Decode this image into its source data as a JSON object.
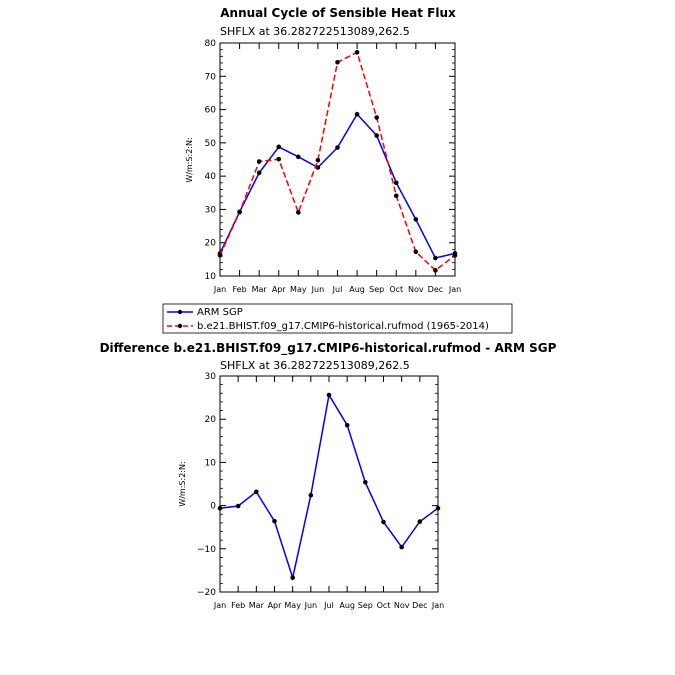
{
  "chart_data": [
    {
      "type": "line",
      "title": "Annual Cycle of Sensible Heat Flux",
      "subtitle": "SHFLX  at  36.282722513089,262.5",
      "ylabel": "W/m:S:2:N:",
      "xlabel": "",
      "categories": [
        "Jan",
        "Feb",
        "Mar",
        "Apr",
        "May",
        "Jun",
        "Jul",
        "Aug",
        "Sep",
        "Oct",
        "Nov",
        "Dec",
        "Jan"
      ],
      "ylim": [
        10,
        80
      ],
      "yticks": [
        10,
        20,
        30,
        40,
        50,
        60,
        70,
        80
      ],
      "series": [
        {
          "name": "ARM SGP",
          "color": "#0000ff",
          "dash": "solid",
          "values": [
            16.8,
            29.3,
            41.0,
            48.8,
            45.8,
            42.6,
            48.6,
            58.6,
            52.2,
            38.0,
            27.0,
            15.4,
            16.8
          ]
        },
        {
          "name": "b.e21.BHIST.f09_g17.CMIP6-historical.rufmod (1965-2014)",
          "color": "#ff0000",
          "dash": "dashed",
          "values": [
            16.2,
            29.2,
            44.4,
            45.1,
            29.1,
            44.8,
            74.2,
            77.2,
            57.6,
            34.1,
            17.3,
            11.7,
            16.2
          ]
        }
      ]
    },
    {
      "type": "line",
      "title": "Difference b.e21.BHIST.f09_g17.CMIP6-historical.rufmod - ARM SGP",
      "subtitle": "SHFLX  at  36.282722513089,262.5",
      "ylabel": "W/m:S:2:N:",
      "xlabel": "",
      "categories": [
        "Jan",
        "Feb",
        "Mar",
        "Apr",
        "May",
        "Jun",
        "Jul",
        "Aug",
        "Sep",
        "Oct",
        "Nov",
        "Dec",
        "Jan"
      ],
      "ylim": [
        -20,
        30
      ],
      "yticks": [
        -20,
        -10,
        0,
        10,
        20,
        30
      ],
      "series": [
        {
          "color": "#0000ff",
          "dash": "solid",
          "values": [
            -0.6,
            -0.1,
            3.2,
            -3.6,
            -16.7,
            2.4,
            25.6,
            18.6,
            5.4,
            -3.8,
            -9.6,
            -3.7,
            -0.6
          ]
        }
      ]
    }
  ]
}
